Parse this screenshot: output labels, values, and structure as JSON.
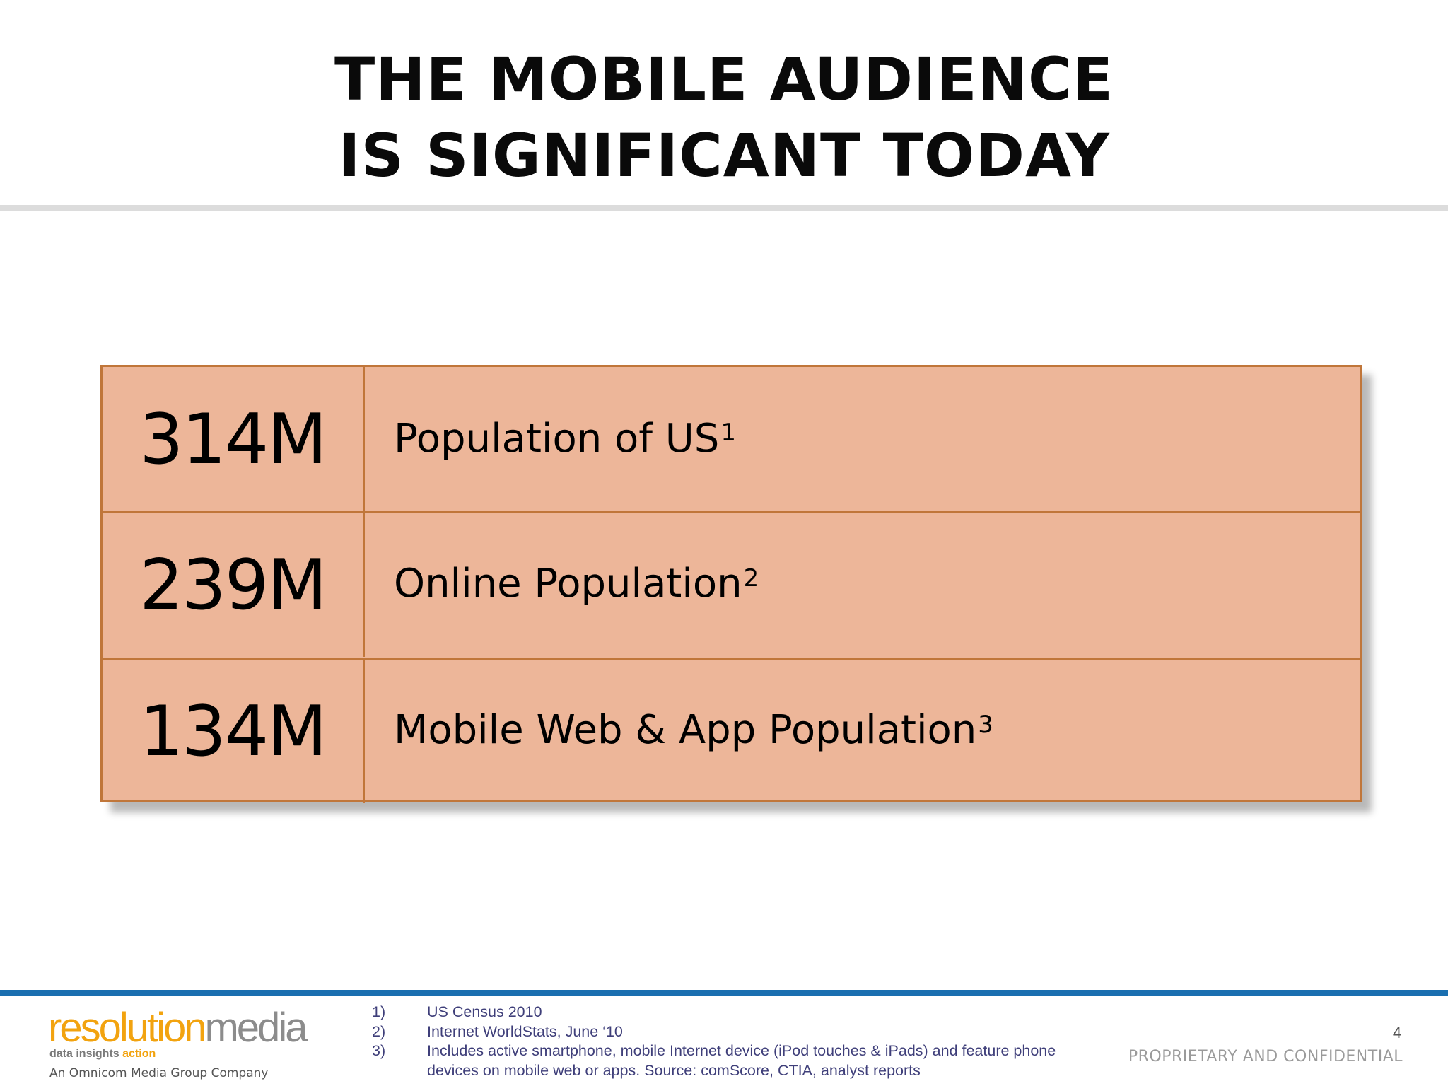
{
  "title": {
    "line1": "THE MOBILE AUDIENCE",
    "line2": "IS SIGNIFICANT TODAY"
  },
  "stats": [
    {
      "value": "314M",
      "label": "Population of US",
      "footnote_ref": "1"
    },
    {
      "value": "239M",
      "label": "Online Population",
      "footnote_ref": "2"
    },
    {
      "value": "134M",
      "label": "Mobile Web & App Population",
      "footnote_ref": "3"
    }
  ],
  "footnotes": [
    {
      "num": "1)",
      "text": "US Census 2010"
    },
    {
      "num": "2)",
      "text": "Internet WorldStats, June ‘10"
    },
    {
      "num": "3)",
      "text": "Includes active smartphone, mobile Internet device (iPod touches & iPads) and feature phone devices on mobile web or apps. Source: comScore, CTIA, analyst reports"
    }
  ],
  "logo": {
    "word_part1": "resolution",
    "word_part2": "media",
    "tagline_part1": "data insights ",
    "tagline_part2": "action",
    "company": "An Omnicom Media Group Company"
  },
  "page_number": "4",
  "confidential": "PROPRIETARY AND CONFIDENTIAL",
  "colors": {
    "table_fill": "#edb699",
    "table_border": "#c0763a",
    "footer_rule": "#1a6fb0",
    "logo_orange": "#f2a30f",
    "logo_gray": "#8c8c8c"
  }
}
